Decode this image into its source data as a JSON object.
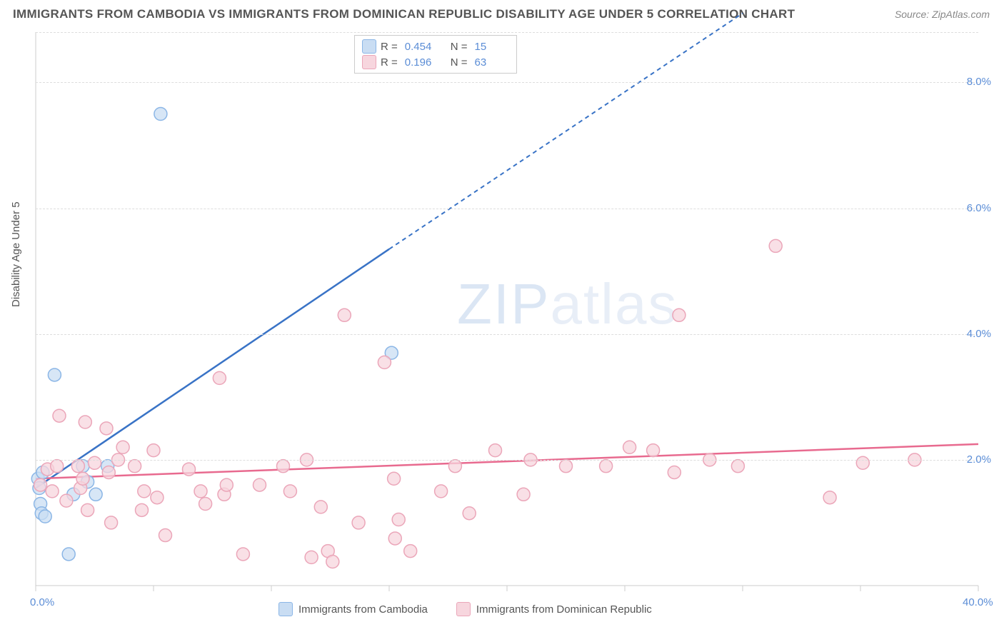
{
  "title": "IMMIGRANTS FROM CAMBODIA VS IMMIGRANTS FROM DOMINICAN REPUBLIC DISABILITY AGE UNDER 5 CORRELATION CHART",
  "source_label": "Source:",
  "source_name": "ZipAtlas.com",
  "ylabel": "Disability Age Under 5",
  "watermark_a": "ZIP",
  "watermark_b": "atlas",
  "chart": {
    "type": "scatter",
    "xlim": [
      0,
      40
    ],
    "ylim": [
      0,
      8.8
    ],
    "x_ticks": [
      0,
      5,
      10,
      15,
      20,
      25,
      30,
      35,
      40
    ],
    "y_ticks": [
      2,
      4,
      6,
      8
    ],
    "x_tick_labels": {
      "0": "0.0%",
      "40": "40.0%"
    },
    "y_tick_labels": {
      "2": "2.0%",
      "4": "4.0%",
      "6": "6.0%",
      "8": "8.0%"
    },
    "grid_color": "#dddddd",
    "background_color": "#ffffff",
    "marker_radius": 9,
    "marker_stroke_width": 1.5,
    "series": [
      {
        "name": "Immigrants from Cambodia",
        "color_fill": "#c9ddf3",
        "color_stroke": "#8bb6e6",
        "line_color": "#3973c6",
        "R": "0.454",
        "N": "15",
        "trend": {
          "x1": 0,
          "y1": 1.55,
          "x2": 15,
          "y2": 5.35,
          "dash_x2": 30.0,
          "dash_y2": 9.1
        },
        "points": [
          [
            0.1,
            1.7
          ],
          [
            0.15,
            1.55
          ],
          [
            0.2,
            1.3
          ],
          [
            0.25,
            1.15
          ],
          [
            0.3,
            1.8
          ],
          [
            0.4,
            1.1
          ],
          [
            0.8,
            3.35
          ],
          [
            1.4,
            0.5
          ],
          [
            1.6,
            1.45
          ],
          [
            2.0,
            1.9
          ],
          [
            2.2,
            1.65
          ],
          [
            2.55,
            1.45
          ],
          [
            3.05,
            1.9
          ],
          [
            5.3,
            7.5
          ],
          [
            15.1,
            3.7
          ]
        ]
      },
      {
        "name": "Immigrants from Dominican Republic",
        "color_fill": "#f7d6de",
        "color_stroke": "#eba6b9",
        "line_color": "#e86a8f",
        "R": "0.196",
        "N": "63",
        "trend": {
          "x1": 0,
          "y1": 1.7,
          "x2": 40,
          "y2": 2.25
        },
        "points": [
          [
            0.2,
            1.6
          ],
          [
            0.5,
            1.85
          ],
          [
            0.7,
            1.5
          ],
          [
            0.9,
            1.9
          ],
          [
            1.0,
            2.7
          ],
          [
            1.3,
            1.35
          ],
          [
            1.8,
            1.9
          ],
          [
            1.9,
            1.55
          ],
          [
            2.0,
            1.7
          ],
          [
            2.1,
            2.6
          ],
          [
            2.2,
            1.2
          ],
          [
            2.5,
            1.95
          ],
          [
            3.0,
            2.5
          ],
          [
            3.1,
            1.8
          ],
          [
            3.2,
            1.0
          ],
          [
            3.5,
            2.0
          ],
          [
            3.7,
            2.2
          ],
          [
            4.2,
            1.9
          ],
          [
            4.5,
            1.2
          ],
          [
            4.6,
            1.5
          ],
          [
            5.0,
            2.15
          ],
          [
            5.15,
            1.4
          ],
          [
            5.5,
            0.8
          ],
          [
            6.5,
            1.85
          ],
          [
            7.0,
            1.5
          ],
          [
            7.2,
            1.3
          ],
          [
            7.8,
            3.3
          ],
          [
            8.0,
            1.45
          ],
          [
            8.1,
            1.6
          ],
          [
            8.8,
            0.5
          ],
          [
            9.5,
            1.6
          ],
          [
            10.5,
            1.9
          ],
          [
            10.8,
            1.5
          ],
          [
            11.5,
            2.0
          ],
          [
            11.7,
            0.45
          ],
          [
            12.1,
            1.25
          ],
          [
            12.4,
            0.55
          ],
          [
            12.6,
            0.38
          ],
          [
            13.1,
            4.3
          ],
          [
            13.7,
            1.0
          ],
          [
            14.8,
            3.55
          ],
          [
            15.2,
            1.7
          ],
          [
            15.25,
            0.75
          ],
          [
            15.4,
            1.05
          ],
          [
            15.9,
            0.55
          ],
          [
            17.2,
            1.5
          ],
          [
            17.8,
            1.9
          ],
          [
            18.4,
            1.15
          ],
          [
            19.5,
            2.15
          ],
          [
            20.7,
            1.45
          ],
          [
            21.0,
            2.0
          ],
          [
            22.5,
            1.9
          ],
          [
            24.2,
            1.9
          ],
          [
            25.2,
            2.2
          ],
          [
            26.2,
            2.15
          ],
          [
            27.1,
            1.8
          ],
          [
            27.3,
            4.3
          ],
          [
            28.6,
            2.0
          ],
          [
            29.8,
            1.9
          ],
          [
            31.4,
            5.4
          ],
          [
            33.7,
            1.4
          ],
          [
            35.1,
            1.95
          ],
          [
            37.3,
            2.0
          ]
        ]
      }
    ]
  },
  "legend_top": {
    "rows": [
      {
        "swatch_fill": "#c9ddf3",
        "swatch_stroke": "#8bb6e6",
        "R_label": "R =",
        "R_val": "0.454",
        "N_label": "N =",
        "N_val": "15"
      },
      {
        "swatch_fill": "#f7d6de",
        "swatch_stroke": "#eba6b9",
        "R_label": "R =",
        "R_val": "0.196",
        "N_label": "N =",
        "N_val": "63"
      }
    ]
  },
  "legend_bottom": [
    {
      "swatch_fill": "#c9ddf3",
      "swatch_stroke": "#8bb6e6",
      "label": "Immigrants from Cambodia"
    },
    {
      "swatch_fill": "#f7d6de",
      "swatch_stroke": "#eba6b9",
      "label": "Immigrants from Dominican Republic"
    }
  ]
}
